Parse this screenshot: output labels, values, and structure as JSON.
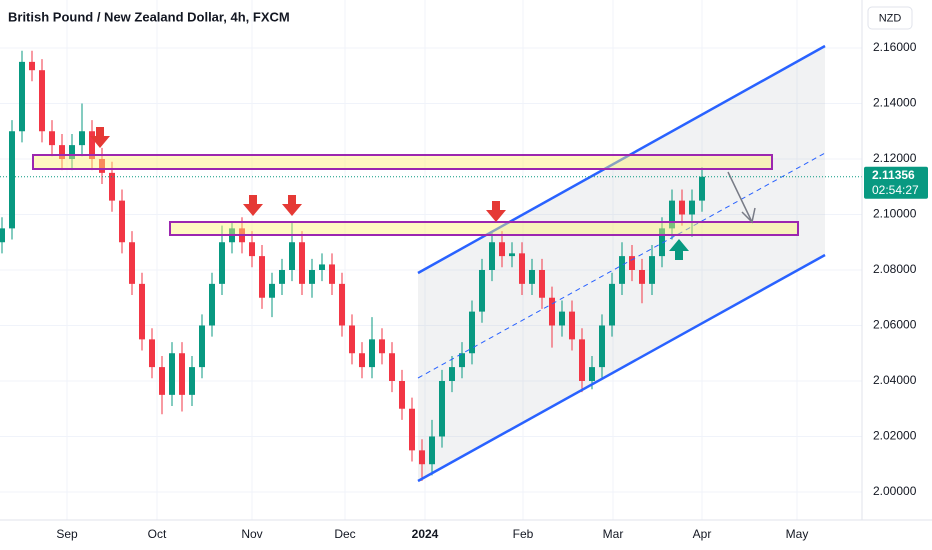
{
  "chart_data": {
    "type": "candlestick",
    "title": "British Pound / New Zealand Dollar, 4h, FXCM",
    "currency_button": "NZD",
    "last_price_label": "2.11356",
    "countdown": "02:54:27",
    "up_color": "#089981",
    "down_color": "#f23645",
    "grid": true,
    "xlim": [
      -0.2,
      85.8
    ],
    "xticks": [
      {
        "value": 6.5,
        "label": "Sep"
      },
      {
        "value": 15.5,
        "label": "Oct"
      },
      {
        "value": 25,
        "label": "Nov"
      },
      {
        "value": 34.3,
        "label": "Dec"
      },
      {
        "value": 42.3,
        "label": "2024"
      },
      {
        "value": 52.1,
        "label": "Feb"
      },
      {
        "value": 61.1,
        "label": "Mar"
      },
      {
        "value": 70,
        "label": "Apr"
      },
      {
        "value": 79.5,
        "label": "May"
      }
    ],
    "ylim": [
      1.9899,
      2.1773
    ],
    "yticks": [
      {
        "value": 2.16,
        "label": "2.16000"
      },
      {
        "value": 2.14,
        "label": "2.14000"
      },
      {
        "value": 2.12,
        "label": "2.12000"
      },
      {
        "value": 2.1,
        "label": "2.10000"
      },
      {
        "value": 2.08,
        "label": "2.08000"
      },
      {
        "value": 2.06,
        "label": "2.06000"
      },
      {
        "value": 2.04,
        "label": "2.04000"
      },
      {
        "value": 2.02,
        "label": "2.02000"
      },
      {
        "value": 2,
        "label": "2.00000"
      }
    ],
    "x": [
      0,
      1,
      2,
      3,
      4,
      5,
      6,
      7,
      8,
      9,
      10,
      11,
      12,
      13,
      14,
      15,
      16,
      17,
      18,
      19,
      20,
      21,
      22,
      23,
      24,
      25,
      26,
      27,
      28,
      29,
      30,
      31,
      32,
      33,
      34,
      35,
      36,
      37,
      38,
      39,
      40,
      41,
      42,
      43,
      44,
      45,
      46,
      47,
      48,
      49,
      50,
      51,
      52,
      53,
      54,
      55,
      56,
      57,
      58,
      59,
      60,
      61,
      62,
      63,
      64,
      65,
      66,
      67,
      68,
      69,
      70
    ],
    "open": [
      2.09,
      2.095,
      2.13,
      2.155,
      2.152,
      2.13,
      2.125,
      2.12,
      2.125,
      2.13,
      2.12,
      2.115,
      2.105,
      2.09,
      2.075,
      2.055,
      2.045,
      2.035,
      2.05,
      2.035,
      2.045,
      2.06,
      2.075,
      2.09,
      2.095,
      2.09,
      2.085,
      2.07,
      2.075,
      2.08,
      2.09,
      2.075,
      2.08,
      2.082,
      2.075,
      2.06,
      2.05,
      2.045,
      2.055,
      2.05,
      2.04,
      2.03,
      2.015,
      2.01,
      2.02,
      2.04,
      2.045,
      2.05,
      2.065,
      2.08,
      2.09,
      2.085,
      2.086,
      2.075,
      2.08,
      2.07,
      2.06,
      2.065,
      2.055,
      2.04,
      2.045,
      2.06,
      2.075,
      2.085,
      2.08,
      2.075,
      2.085,
      2.095,
      2.105,
      2.1,
      2.105
    ],
    "high": [
      2.099,
      2.134,
      2.159,
      2.159,
      2.156,
      2.134,
      2.129,
      2.129,
      2.14,
      2.134,
      2.124,
      2.119,
      2.109,
      2.094,
      2.079,
      2.059,
      2.049,
      2.054,
      2.054,
      2.049,
      2.064,
      2.079,
      2.096,
      2.097,
      2.099,
      2.094,
      2.089,
      2.079,
      2.084,
      2.097,
      2.094,
      2.084,
      2.086,
      2.086,
      2.079,
      2.064,
      2.054,
      2.063,
      2.059,
      2.054,
      2.044,
      2.034,
      2.019,
      2.026,
      2.044,
      2.049,
      2.054,
      2.069,
      2.084,
      2.094,
      2.094,
      2.09,
      2.09,
      2.084,
      2.084,
      2.074,
      2.069,
      2.069,
      2.059,
      2.049,
      2.064,
      2.079,
      2.09,
      2.089,
      2.084,
      2.089,
      2.099,
      2.109,
      2.109,
      2.109,
      2.117
    ],
    "low": [
      2.086,
      2.091,
      2.126,
      2.148,
      2.126,
      2.121,
      2.116,
      2.116,
      2.121,
      2.116,
      2.111,
      2.101,
      2.086,
      2.071,
      2.051,
      2.041,
      2.028,
      2.031,
      2.029,
      2.031,
      2.041,
      2.056,
      2.071,
      2.086,
      2.086,
      2.081,
      2.066,
      2.063,
      2.071,
      2.076,
      2.071,
      2.07,
      2.076,
      2.071,
      2.056,
      2.046,
      2.041,
      2.041,
      2.046,
      2.036,
      2.026,
      2.011,
      2.004,
      2.006,
      2.016,
      2.036,
      2.041,
      2.046,
      2.061,
      2.076,
      2.081,
      2.081,
      2.071,
      2.071,
      2.066,
      2.052,
      2.056,
      2.051,
      2.036,
      2.037,
      2.041,
      2.056,
      2.071,
      2.076,
      2.068,
      2.071,
      2.081,
      2.091,
      2.096,
      2.092,
      2.101
    ],
    "close": [
      2.095,
      2.13,
      2.155,
      2.152,
      2.13,
      2.125,
      2.12,
      2.125,
      2.13,
      2.12,
      2.115,
      2.105,
      2.09,
      2.075,
      2.055,
      2.045,
      2.035,
      2.05,
      2.035,
      2.045,
      2.06,
      2.075,
      2.09,
      2.095,
      2.09,
      2.085,
      2.07,
      2.075,
      2.08,
      2.09,
      2.075,
      2.08,
      2.082,
      2.075,
      2.06,
      2.05,
      2.045,
      2.055,
      2.05,
      2.04,
      2.03,
      2.015,
      2.01,
      2.02,
      2.04,
      2.045,
      2.05,
      2.065,
      2.08,
      2.09,
      2.085,
      2.086,
      2.075,
      2.08,
      2.07,
      2.06,
      2.065,
      2.055,
      2.04,
      2.045,
      2.06,
      2.075,
      2.085,
      2.08,
      2.075,
      2.085,
      2.095,
      2.105,
      2.1,
      2.105,
      2.1136
    ]
  }
}
